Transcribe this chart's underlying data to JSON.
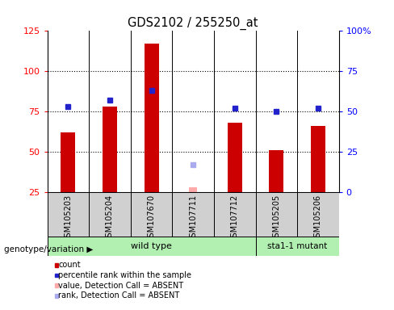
{
  "title": "GDS2102 / 255250_at",
  "samples": [
    "GSM105203",
    "GSM105204",
    "GSM107670",
    "GSM107711",
    "GSM107712",
    "GSM105205",
    "GSM105206"
  ],
  "count_values": [
    62,
    78,
    117,
    null,
    68,
    51,
    66
  ],
  "percentile_values": [
    53,
    57,
    63,
    null,
    52,
    50,
    52
  ],
  "absent_value": 28,
  "absent_rank": 17,
  "absent_index": 3,
  "ylim_left": [
    25,
    125
  ],
  "ylim_right": [
    0,
    100
  ],
  "yticks_left": [
    25,
    50,
    75,
    100,
    125
  ],
  "ytick_labels_left": [
    "25",
    "50",
    "75",
    "100",
    "125"
  ],
  "ytick_labels_right": [
    "0",
    "25",
    "50",
    "75",
    "100%"
  ],
  "bar_color": "#cc0000",
  "blue_color": "#2222cc",
  "absent_val_color": "#ffaaaa",
  "absent_rank_color": "#aaaaee",
  "wild_type_label": "wild type",
  "mutant_label": "sta1-1 mutant",
  "group_bg_color": "#b2f0b2",
  "sample_bg_color": "#d0d0d0",
  "legend_items": [
    {
      "label": "count",
      "color": "#cc0000"
    },
    {
      "label": "percentile rank within the sample",
      "color": "#2222cc"
    },
    {
      "label": "value, Detection Call = ABSENT",
      "color": "#ffaaaa"
    },
    {
      "label": "rank, Detection Call = ABSENT",
      "color": "#aaaaee"
    }
  ],
  "genotype_label": "genotype/variation",
  "bar_width": 0.35,
  "blue_marker_size": 5,
  "absent_bar_width": 0.2
}
